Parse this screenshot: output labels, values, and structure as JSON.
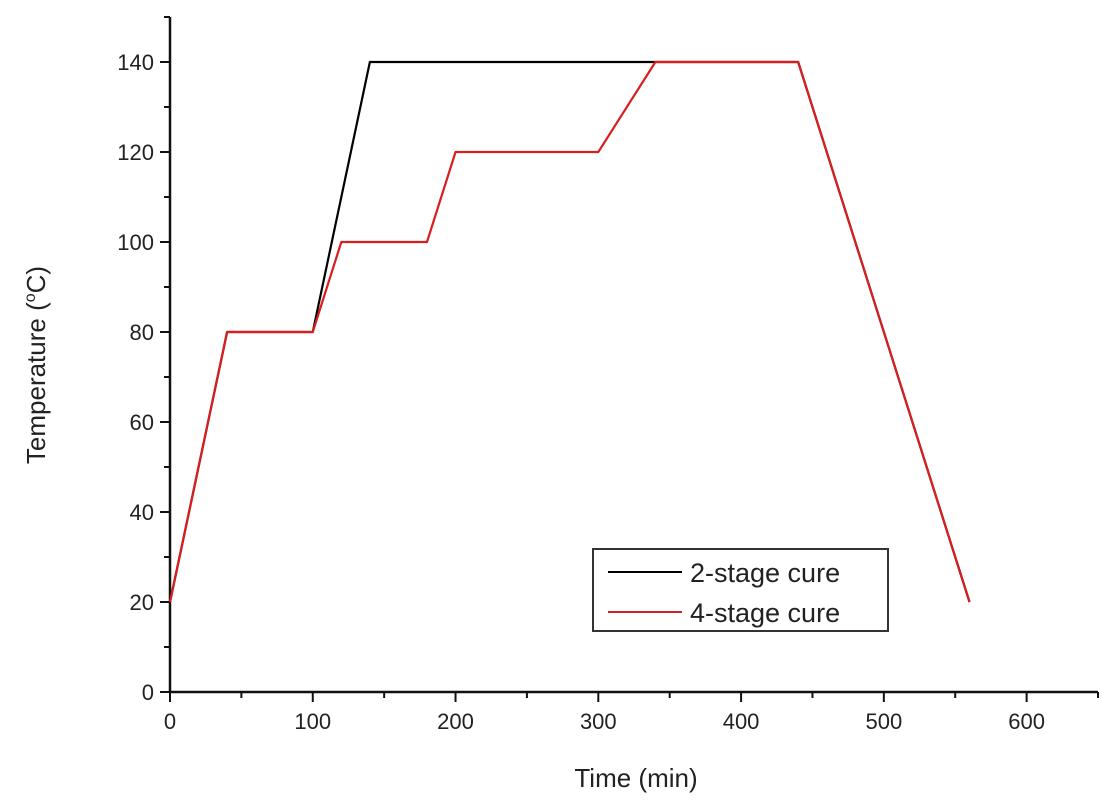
{
  "chart_data": {
    "type": "line",
    "title": "",
    "xlabel": "Time (min)",
    "ylabel": "Temperature (°C)",
    "ylabel_parts": {
      "pre": "Temperature (",
      "sup": "o",
      "post": "C)"
    },
    "xlim": [
      0,
      650
    ],
    "ylim": [
      0,
      150
    ],
    "xticks": [
      0,
      100,
      200,
      300,
      400,
      500,
      600
    ],
    "yticks": [
      0,
      20,
      40,
      60,
      80,
      100,
      120,
      140
    ],
    "grid": false,
    "legend_position": "bottom-right",
    "series": [
      {
        "name": "2-stage cure",
        "color": "#000000",
        "x": [
          0,
          40,
          100,
          140,
          440,
          560
        ],
        "y": [
          20,
          80,
          80,
          140,
          140,
          20
        ]
      },
      {
        "name": "4-stage cure",
        "color": "#d81e1e",
        "x": [
          0,
          40,
          100,
          120,
          180,
          200,
          300,
          340,
          440,
          560
        ],
        "y": [
          20,
          80,
          80,
          100,
          100,
          120,
          120,
          140,
          140,
          20
        ]
      }
    ]
  }
}
